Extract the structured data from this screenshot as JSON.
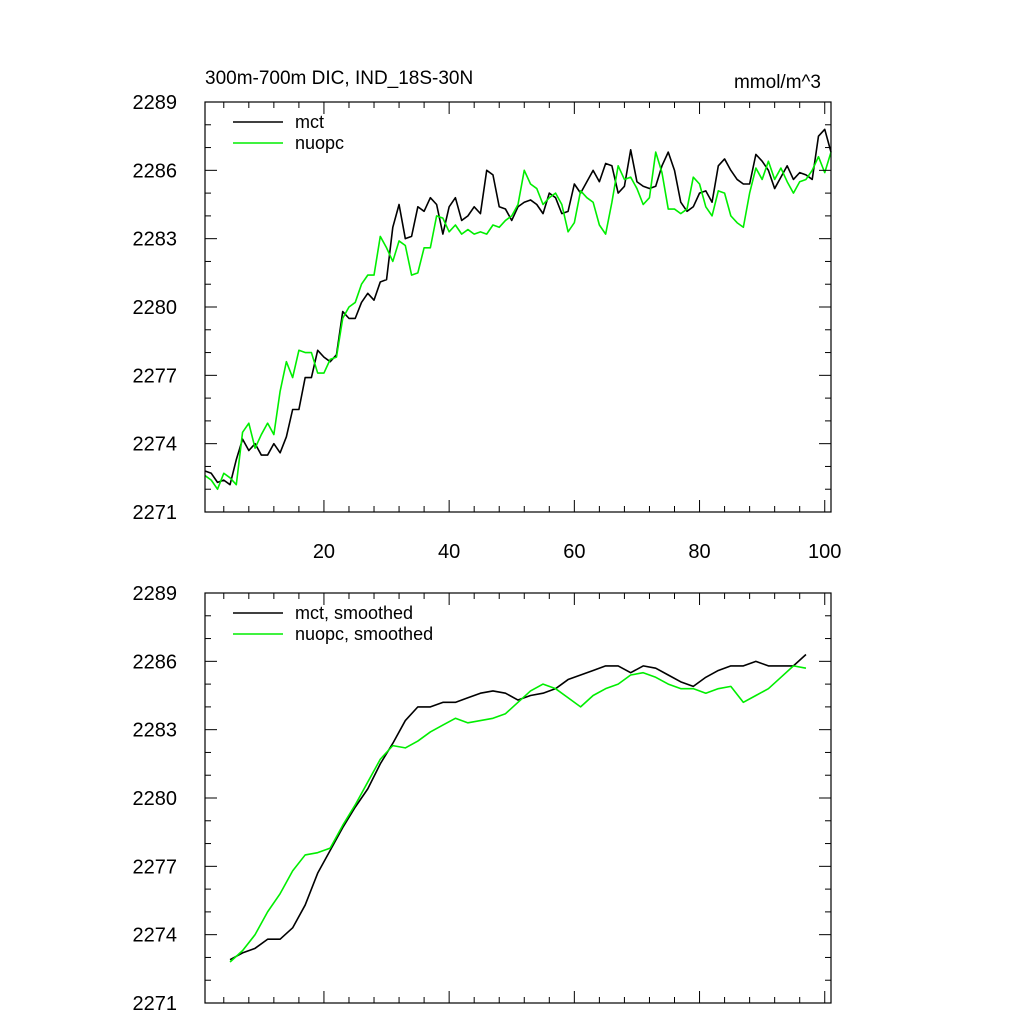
{
  "colors": {
    "mct": "#000000",
    "nuopc": "#00ee00",
    "frame": "#000000",
    "background": "#ffffff"
  },
  "chart_data": [
    {
      "type": "line",
      "title": "300m-700m DIC, IND_18S-30N",
      "units": "mmol/m^3",
      "xlim": [
        1,
        101
      ],
      "ylim": [
        2271,
        2289
      ],
      "xticks": [
        20,
        40,
        60,
        80,
        100
      ],
      "yticks": [
        2271,
        2274,
        2277,
        2280,
        2283,
        2286,
        2289
      ],
      "show_xtick_labels": true,
      "legend": "top-left",
      "grid": false,
      "series": [
        {
          "name": "mct",
          "color": "#000000",
          "x": [
            1,
            2,
            3,
            4,
            5,
            6,
            7,
            8,
            9,
            10,
            11,
            12,
            13,
            14,
            15,
            16,
            17,
            18,
            19,
            20,
            21,
            22,
            23,
            24,
            25,
            26,
            27,
            28,
            29,
            30,
            31,
            32,
            33,
            34,
            35,
            36,
            37,
            38,
            39,
            40,
            41,
            42,
            43,
            44,
            45,
            46,
            47,
            48,
            49,
            50,
            51,
            52,
            53,
            54,
            55,
            56,
            57,
            58,
            59,
            60,
            61,
            62,
            63,
            64,
            65,
            66,
            67,
            68,
            69,
            70,
            71,
            72,
            73,
            74,
            75,
            76,
            77,
            78,
            79,
            80,
            81,
            82,
            83,
            84,
            85,
            86,
            87,
            88,
            89,
            90,
            91,
            92,
            93,
            94,
            95,
            96,
            97,
            98,
            99,
            100,
            101
          ],
          "values": [
            2272.8,
            2272.7,
            2272.3,
            2272.4,
            2272.2,
            2273.3,
            2274.2,
            2273.7,
            2274.0,
            2273.5,
            2273.5,
            2274.0,
            2273.6,
            2274.3,
            2275.5,
            2275.5,
            2276.9,
            2276.9,
            2278.1,
            2277.8,
            2277.6,
            2277.9,
            2279.8,
            2279.5,
            2279.5,
            2280.2,
            2280.6,
            2280.3,
            2281.1,
            2281.2,
            2283.5,
            2284.5,
            2283.0,
            2283.1,
            2284.4,
            2284.2,
            2284.8,
            2284.5,
            2283.2,
            2284.4,
            2284.8,
            2283.8,
            2284.0,
            2284.4,
            2284.1,
            2286.0,
            2285.8,
            2284.4,
            2284.3,
            2283.8,
            2284.4,
            2284.6,
            2284.7,
            2284.5,
            2284.1,
            2285.0,
            2284.8,
            2284.1,
            2284.2,
            2285.4,
            2285.0,
            2285.5,
            2286.0,
            2285.5,
            2286.3,
            2286.2,
            2285.0,
            2285.3,
            2286.9,
            2285.5,
            2285.3,
            2285.2,
            2285.3,
            2286.2,
            2286.8,
            2286.0,
            2284.6,
            2284.2,
            2284.4,
            2285.0,
            2285.1,
            2284.6,
            2286.2,
            2286.5,
            2286.0,
            2285.6,
            2285.4,
            2285.4,
            2286.7,
            2286.4,
            2286.0,
            2285.2,
            2285.7,
            2286.2,
            2285.6,
            2285.9,
            2285.8,
            2285.6,
            2287.5,
            2287.8,
            2286.8
          ]
        },
        {
          "name": "nuopc",
          "color": "#00ee00",
          "x": [
            1,
            2,
            3,
            4,
            5,
            6,
            7,
            8,
            9,
            10,
            11,
            12,
            13,
            14,
            15,
            16,
            17,
            18,
            19,
            20,
            21,
            22,
            23,
            24,
            25,
            26,
            27,
            28,
            29,
            30,
            31,
            32,
            33,
            34,
            35,
            36,
            37,
            38,
            39,
            40,
            41,
            42,
            43,
            44,
            45,
            46,
            47,
            48,
            49,
            50,
            51,
            52,
            53,
            54,
            55,
            56,
            57,
            58,
            59,
            60,
            61,
            62,
            63,
            64,
            65,
            66,
            67,
            68,
            69,
            70,
            71,
            72,
            73,
            74,
            75,
            76,
            77,
            78,
            79,
            80,
            81,
            82,
            83,
            84,
            85,
            86,
            87,
            88,
            89,
            90,
            91,
            92,
            93,
            94,
            95,
            96,
            97,
            98,
            99,
            100,
            101
          ],
          "values": [
            2272.6,
            2272.4,
            2272.0,
            2272.7,
            2272.5,
            2272.2,
            2274.5,
            2274.9,
            2273.8,
            2274.4,
            2274.9,
            2274.4,
            2276.3,
            2277.6,
            2276.9,
            2278.1,
            2278.0,
            2278.0,
            2277.1,
            2277.1,
            2277.7,
            2277.8,
            2279.5,
            2280.0,
            2280.2,
            2281.0,
            2281.4,
            2281.4,
            2283.1,
            2282.6,
            2282.0,
            2282.9,
            2282.7,
            2281.4,
            2281.5,
            2282.6,
            2282.6,
            2284.0,
            2283.9,
            2283.3,
            2283.6,
            2283.2,
            2283.4,
            2283.2,
            2283.3,
            2283.2,
            2283.6,
            2283.5,
            2283.8,
            2284.0,
            2284.5,
            2286.0,
            2285.4,
            2285.2,
            2284.5,
            2284.8,
            2285.0,
            2284.5,
            2283.3,
            2283.7,
            2285.1,
            2284.8,
            2284.6,
            2283.6,
            2283.2,
            2284.6,
            2286.2,
            2285.6,
            2285.7,
            2285.2,
            2284.5,
            2284.8,
            2286.8,
            2285.9,
            2284.3,
            2284.3,
            2284.1,
            2284.3,
            2285.7,
            2285.4,
            2284.4,
            2284.0,
            2285.1,
            2285.0,
            2284.0,
            2283.7,
            2283.5,
            2285.0,
            2286.1,
            2285.6,
            2286.4,
            2285.6,
            2286.1,
            2285.5,
            2285.0,
            2285.5,
            2285.6,
            2286.0,
            2286.6,
            2285.9,
            2286.8
          ]
        }
      ]
    },
    {
      "type": "line",
      "title": "",
      "units": "",
      "xlim": [
        1,
        101
      ],
      "ylim": [
        2271,
        2289
      ],
      "xticks": [
        20,
        40,
        60,
        80,
        100
      ],
      "yticks": [
        2271,
        2274,
        2277,
        2280,
        2283,
        2286,
        2289
      ],
      "show_xtick_labels": false,
      "legend": "top-left",
      "grid": false,
      "series": [
        {
          "name": "mct, smoothed",
          "color": "#000000",
          "x": [
            5,
            7,
            9,
            11,
            13,
            15,
            17,
            19,
            21,
            23,
            25,
            27,
            29,
            31,
            33,
            35,
            37,
            39,
            41,
            43,
            45,
            47,
            49,
            51,
            53,
            55,
            57,
            59,
            61,
            63,
            65,
            67,
            69,
            71,
            73,
            75,
            77,
            79,
            81,
            83,
            85,
            87,
            89,
            91,
            93,
            95,
            97
          ],
          "values": [
            2272.9,
            2273.2,
            2273.4,
            2273.8,
            2273.8,
            2274.3,
            2275.3,
            2276.7,
            2277.7,
            2278.7,
            2279.6,
            2280.4,
            2281.5,
            2282.4,
            2283.4,
            2284.0,
            2284.0,
            2284.2,
            2284.2,
            2284.4,
            2284.6,
            2284.7,
            2284.6,
            2284.3,
            2284.5,
            2284.6,
            2284.8,
            2285.2,
            2285.4,
            2285.6,
            2285.8,
            2285.8,
            2285.5,
            2285.8,
            2285.7,
            2285.4,
            2285.1,
            2284.9,
            2285.3,
            2285.6,
            2285.8,
            2285.8,
            2286.0,
            2285.8,
            2285.8,
            2285.8,
            2286.3
          ]
        },
        {
          "name": "nuopc, smoothed",
          "color": "#00ee00",
          "x": [
            5,
            7,
            9,
            11,
            13,
            15,
            17,
            19,
            21,
            23,
            25,
            27,
            29,
            31,
            33,
            35,
            37,
            39,
            41,
            43,
            45,
            47,
            49,
            51,
            53,
            55,
            57,
            59,
            61,
            63,
            65,
            67,
            69,
            71,
            73,
            75,
            77,
            79,
            81,
            83,
            85,
            87,
            89,
            91,
            93,
            95,
            97
          ],
          "values": [
            2272.8,
            2273.3,
            2274.0,
            2275.0,
            2275.8,
            2276.8,
            2277.5,
            2277.6,
            2277.8,
            2278.8,
            2279.7,
            2280.7,
            2281.7,
            2282.3,
            2282.2,
            2282.5,
            2282.9,
            2283.2,
            2283.5,
            2283.3,
            2283.4,
            2283.5,
            2283.7,
            2284.2,
            2284.7,
            2285.0,
            2284.8,
            2284.4,
            2284.0,
            2284.5,
            2284.8,
            2285.0,
            2285.4,
            2285.5,
            2285.3,
            2285.0,
            2284.8,
            2284.8,
            2284.6,
            2284.8,
            2284.9,
            2284.2,
            2284.5,
            2284.8,
            2285.3,
            2285.8,
            2285.7
          ]
        }
      ]
    }
  ]
}
